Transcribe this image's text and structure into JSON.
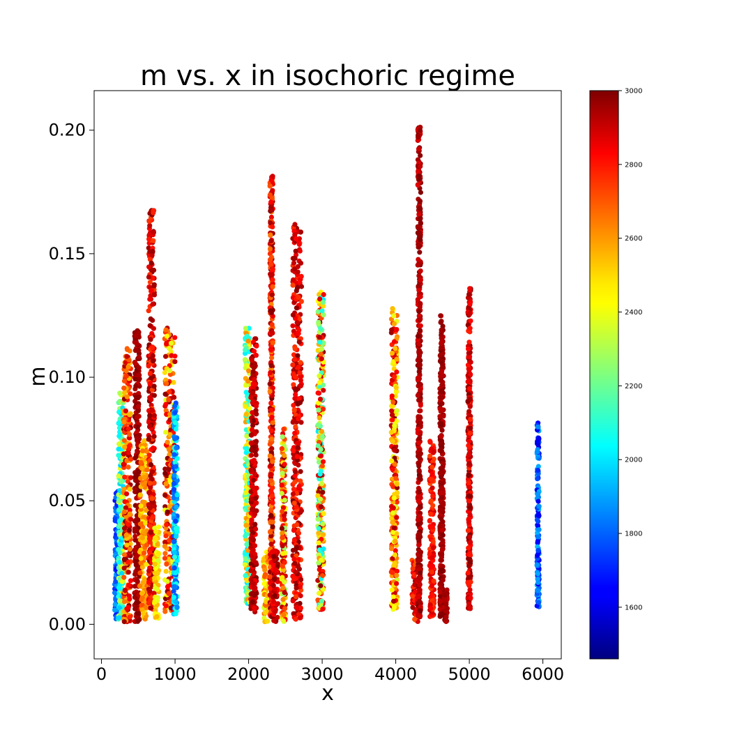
{
  "chart_data": {
    "type": "scatter",
    "title": "m vs. x in isochoric regime",
    "xlabel": "x",
    "ylabel": "m",
    "xlim": [
      -100,
      6250
    ],
    "ylim": [
      -0.014,
      0.216
    ],
    "xticks": [
      0,
      1000,
      2000,
      3000,
      4000,
      5000,
      6000
    ],
    "xtick_labels": [
      "0",
      "1000",
      "2000",
      "3000",
      "4000",
      "5000",
      "6000"
    ],
    "yticks": [
      0.0,
      0.05,
      0.1,
      0.15,
      0.2
    ],
    "ytick_labels": [
      "0.00",
      "0.05",
      "0.10",
      "0.15",
      "0.20"
    ],
    "grid": false,
    "colormap": "jet",
    "colorbar": {
      "min": 1460,
      "max": 3000,
      "ticks": [
        1600,
        1800,
        2000,
        2200,
        2400,
        2600,
        2800,
        3000
      ],
      "tick_labels": [
        "1600",
        "1800",
        "2000",
        "2200",
        "2400",
        "2600",
        "2800",
        "3000"
      ]
    },
    "column_groups": [
      {
        "x_range": [
          180,
          230
        ],
        "m_range": [
          0.002,
          0.054
        ],
        "color_value": [
          1650,
          1900
        ]
      },
      {
        "x_range": [
          230,
          300
        ],
        "m_range": [
          0.002,
          0.094
        ],
        "color_value": [
          1950,
          2400
        ]
      },
      {
        "x_range": [
          300,
          400
        ],
        "m_range": [
          0.001,
          0.113
        ],
        "color_value": [
          2500,
          3000
        ]
      },
      {
        "x_range": [
          450,
          520
        ],
        "m_range": [
          0.001,
          0.12
        ],
        "color_value": [
          2900,
          3000
        ]
      },
      {
        "x_range": [
          520,
          620
        ],
        "m_range": [
          0.002,
          0.075
        ],
        "color_value": [
          2450,
          2700
        ]
      },
      {
        "x_range": [
          640,
          720
        ],
        "m_range": [
          0.006,
          0.168
        ],
        "color_value": [
          2700,
          3000
        ]
      },
      {
        "x_range": [
          720,
          780
        ],
        "m_range": [
          0.002,
          0.04
        ],
        "color_value": [
          2350,
          2550
        ]
      },
      {
        "x_range": [
          860,
          1000
        ],
        "m_range": [
          0.005,
          0.122
        ],
        "color_value": [
          2350,
          3000
        ]
      },
      {
        "x_range": [
          980,
          1030
        ],
        "m_range": [
          0.004,
          0.09
        ],
        "color_value": [
          1750,
          2100
        ]
      },
      {
        "x_range": [
          1950,
          2020
        ],
        "m_range": [
          0.008,
          0.121
        ],
        "color_value": [
          2000,
          2600
        ]
      },
      {
        "x_range": [
          2030,
          2110
        ],
        "m_range": [
          0.005,
          0.117
        ],
        "color_value": [
          2800,
          3000
        ]
      },
      {
        "x_range": [
          2200,
          2290
        ],
        "m_range": [
          0.001,
          0.03
        ],
        "color_value": [
          2350,
          2700
        ]
      },
      {
        "x_range": [
          2290,
          2330
        ],
        "m_range": [
          0.003,
          0.182
        ],
        "color_value": [
          2600,
          3000
        ]
      },
      {
        "x_range": [
          2330,
          2400
        ],
        "m_range": [
          0.001,
          0.03
        ],
        "color_value": [
          2800,
          3000
        ]
      },
      {
        "x_range": [
          2450,
          2500
        ],
        "m_range": [
          0.001,
          0.08
        ],
        "color_value": [
          2250,
          3000
        ]
      },
      {
        "x_range": [
          2600,
          2720
        ],
        "m_range": [
          0.002,
          0.163
        ],
        "color_value": [
          2700,
          3000
        ]
      },
      {
        "x_range": [
          2940,
          3020
        ],
        "m_range": [
          0.006,
          0.135
        ],
        "color_value": [
          2000,
          3000
        ]
      },
      {
        "x_range": [
          3940,
          4020
        ],
        "m_range": [
          0.006,
          0.128
        ],
        "color_value": [
          2350,
          3000
        ]
      },
      {
        "x_range": [
          4220,
          4300
        ],
        "m_range": [
          0.001,
          0.026
        ],
        "color_value": [
          2650,
          3000
        ]
      },
      {
        "x_range": [
          4300,
          4340
        ],
        "m_range": [
          0.003,
          0.202
        ],
        "color_value": [
          2850,
          3000
        ]
      },
      {
        "x_range": [
          4460,
          4520
        ],
        "m_range": [
          0.003,
          0.075
        ],
        "color_value": [
          2700,
          2900
        ]
      },
      {
        "x_range": [
          4600,
          4650
        ],
        "m_range": [
          0.002,
          0.125
        ],
        "color_value": [
          2900,
          3000
        ]
      },
      {
        "x_range": [
          4660,
          4700
        ],
        "m_range": [
          0.001,
          0.014
        ],
        "color_value": [
          2900,
          3000
        ]
      },
      {
        "x_range": [
          4980,
          5020
        ],
        "m_range": [
          0.006,
          0.136
        ],
        "color_value": [
          2750,
          3000
        ]
      },
      {
        "x_range": [
          5920,
          5950
        ],
        "m_range": [
          0.007,
          0.082
        ],
        "color_value": [
          1600,
          1950
        ]
      }
    ]
  }
}
